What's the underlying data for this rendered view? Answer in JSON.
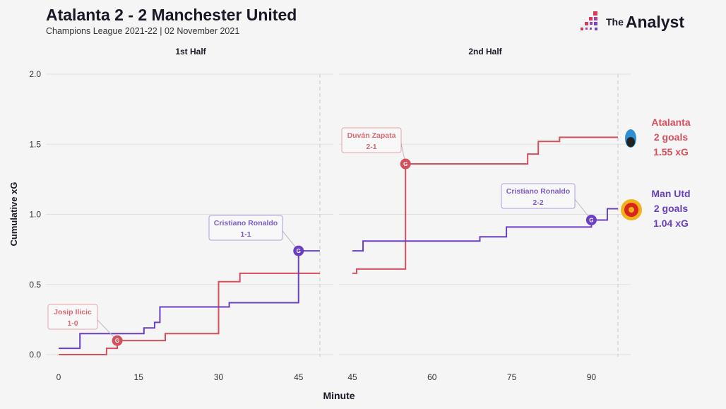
{
  "header": {
    "title": "Atalanta 2 - 2 Manchester United",
    "subtitle": "Champions League 2021-22 | 02 November 2021",
    "brand_small": "The",
    "brand_big": "Analyst"
  },
  "colors": {
    "atalanta": "#d5505b",
    "manutd": "#6a3fc2",
    "background": "#f5f5f5",
    "grid": "#e0e0e0"
  },
  "chart_data": {
    "type": "line",
    "title": "Atalanta 2 - 2 Manchester United",
    "xlabel": "Minute",
    "ylabel": "Cumulative xG",
    "ylim": [
      0,
      2.0
    ],
    "yticks": [
      "0.0",
      "0.5",
      "1.0",
      "1.5",
      "2.0"
    ],
    "grid": true,
    "panels": [
      {
        "label": "1st Half",
        "xlim": [
          0,
          49
        ],
        "xticks": [
          "0",
          "15",
          "30",
          "45"
        ],
        "period_end": 49
      },
      {
        "label": "2nd Half",
        "xlim": [
          45,
          95
        ],
        "xticks": [
          "45",
          "60",
          "75",
          "90"
        ],
        "period_end": 95
      }
    ],
    "series": [
      {
        "name": "Atalanta",
        "team": "atalanta",
        "goals_label": "2 goals",
        "xg_label": "1.55 xG",
        "first_half": [
          [
            0,
            0
          ],
          [
            9,
            0.045
          ],
          [
            11,
            0.1
          ],
          [
            20,
            0.15
          ],
          [
            30,
            0.52
          ],
          [
            34,
            0.58
          ],
          [
            49,
            0.58
          ]
        ],
        "second_half": [
          [
            45,
            0.58
          ],
          [
            45.8,
            0.61
          ],
          [
            55,
            1.36
          ],
          [
            78,
            1.43
          ],
          [
            80,
            1.52
          ],
          [
            84,
            1.55
          ],
          [
            95,
            1.55
          ]
        ]
      },
      {
        "name": "Man Utd",
        "team": "manutd",
        "goals_label": "2 goals",
        "xg_label": "1.04 xG",
        "first_half": [
          [
            0,
            0.045
          ],
          [
            4,
            0.15
          ],
          [
            16,
            0.19
          ],
          [
            18,
            0.23
          ],
          [
            19,
            0.34
          ],
          [
            32,
            0.37
          ],
          [
            45,
            0.74
          ],
          [
            49,
            0.74
          ]
        ],
        "second_half": [
          [
            45,
            0.74
          ],
          [
            47,
            0.81
          ],
          [
            69,
            0.84
          ],
          [
            74,
            0.91
          ],
          [
            90,
            0.96
          ],
          [
            93,
            1.04
          ],
          [
            95,
            1.04
          ]
        ]
      }
    ],
    "goals": [
      {
        "team": "atalanta",
        "half": 0,
        "minute": 11,
        "xg": 0.1,
        "player": "Josip Ilicic",
        "score": "1-0",
        "marker": "G"
      },
      {
        "team": "manutd",
        "half": 0,
        "minute": 45,
        "xg": 0.74,
        "player": "Cristiano Ronaldo",
        "score": "1-1",
        "marker": "G"
      },
      {
        "team": "atalanta",
        "half": 1,
        "minute": 55,
        "xg": 1.36,
        "player": "Duván Zapata",
        "score": "2-1",
        "marker": "G"
      },
      {
        "team": "manutd",
        "half": 1,
        "minute": 90,
        "xg": 0.96,
        "player": "Cristiano Ronaldo",
        "score": "2-2",
        "marker": "G"
      }
    ]
  }
}
